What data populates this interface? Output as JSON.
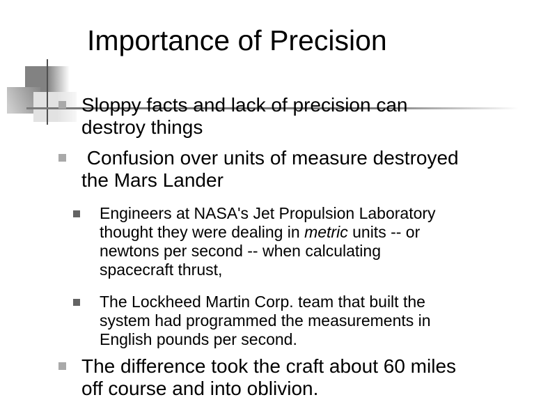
{
  "slide": {
    "title": "Importance of Precision",
    "bullets": [
      {
        "level": 1,
        "lines": [
          "Sloppy facts and lack of precision can",
          "destroy things"
        ]
      },
      {
        "level": 1,
        "lines": [
          " Confusion over units of measure destroyed",
          "the Mars Lander"
        ]
      },
      {
        "level": 2,
        "lines": [
          "Engineers at NASA's Jet Propulsion Laboratory",
          [
            {
              "t": "thought they were dealing in "
            },
            {
              "t": "metric",
              "i": true
            },
            {
              "t": " units -- or"
            }
          ],
          "newtons per second -- when calculating",
          "spacecraft thrust,"
        ]
      },
      {
        "level": 2,
        "lines": [
          "The Lockheed Martin Corp. team that built the",
          "system had programmed the measurements in",
          "English pounds per second."
        ]
      },
      {
        "level": 1,
        "lines": [
          "The difference took the craft about 60 miles",
          "off course and into oblivion."
        ]
      }
    ]
  },
  "icons": {
    "bullet_level1": "small-gray-square",
    "bullet_level2": "small-dark-gray-square"
  },
  "colors": {
    "background": "#ffffff",
    "text": "#000000",
    "bullet_level1": "#a9a9a9",
    "bullet_level2": "#636363",
    "decor_dark_gray": "#828282",
    "decor_mid_gray": "#8a8a8a",
    "decor_light_gray": "#e2e2e2",
    "decor_line_vertical": "#4f4f4f",
    "decor_line_horizontal": "#7a7a7a"
  }
}
